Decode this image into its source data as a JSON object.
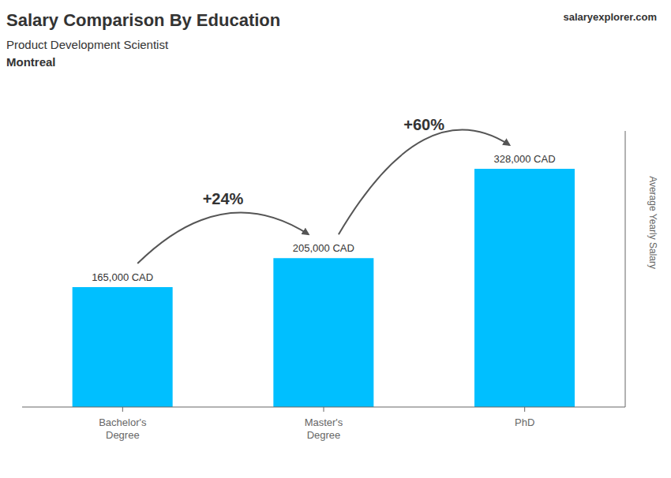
{
  "chart_data": {
    "type": "bar",
    "title": "Salary Comparison By Education",
    "subtitle": "Product Development Scientist",
    "categories": [
      "Bachelor's\nDegree",
      "Master's\nDegree",
      "PhD"
    ],
    "values": [
      165000,
      205000,
      328000
    ],
    "value_labels": [
      "165,000 CAD",
      "205,000 CAD",
      "328,000 CAD"
    ],
    "data_labels": true,
    "color": "#00BFFF",
    "ylabel": "Average Yearly Salary",
    "ylim": [
      0,
      380000
    ],
    "yticks": [],
    "tick_labels": "x",
    "grid": false,
    "annotations": [
      {
        "text": "Montreal"
      },
      {
        "text": "salaryexplorer.com"
      },
      {
        "text": "+24%",
        "from": "Bachelor's\nDegree",
        "to": "Master's\nDegree"
      },
      {
        "text": "+60%",
        "from": "Master's\nDegree",
        "to": "PhD"
      }
    ]
  }
}
